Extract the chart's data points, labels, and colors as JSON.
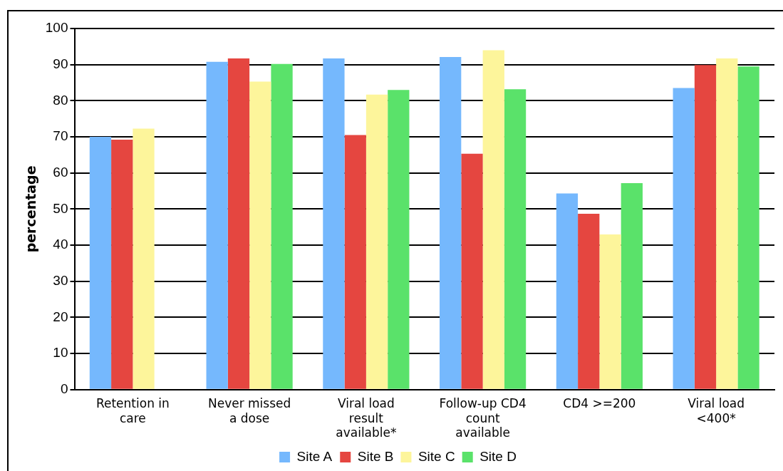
{
  "chart_data": {
    "type": "bar",
    "ylabel": "percentage",
    "categories": [
      "Retention in care",
      "Never missed a dose",
      "Viral load result available*",
      "Follow-up CD4 count available",
      "CD4 >=200",
      "Viral load <400*"
    ],
    "series": [
      {
        "name": "Site A",
        "color": "#75b8fd",
        "values": [
          70,
          90.8,
          91.7,
          92.1,
          54.3,
          83.5
        ]
      },
      {
        "name": "Site B",
        "color": "#e54640",
        "values": [
          69.2,
          91.7,
          70.5,
          65.3,
          48.7,
          89.9
        ]
      },
      {
        "name": "Site C",
        "color": "#fdf59b",
        "values": [
          72.3,
          85.3,
          81.7,
          94,
          43,
          91.7
        ]
      },
      {
        "name": "Site D",
        "color": "#5ae26a",
        "values": [
          null,
          90.2,
          83,
          83.2,
          57.2,
          89.5
        ]
      }
    ],
    "ylim": [
      0,
      100
    ],
    "yticks": [
      0,
      10,
      20,
      30,
      40,
      50,
      60,
      70,
      80,
      90,
      100
    ],
    "grid": "y",
    "legend": "bottom"
  }
}
